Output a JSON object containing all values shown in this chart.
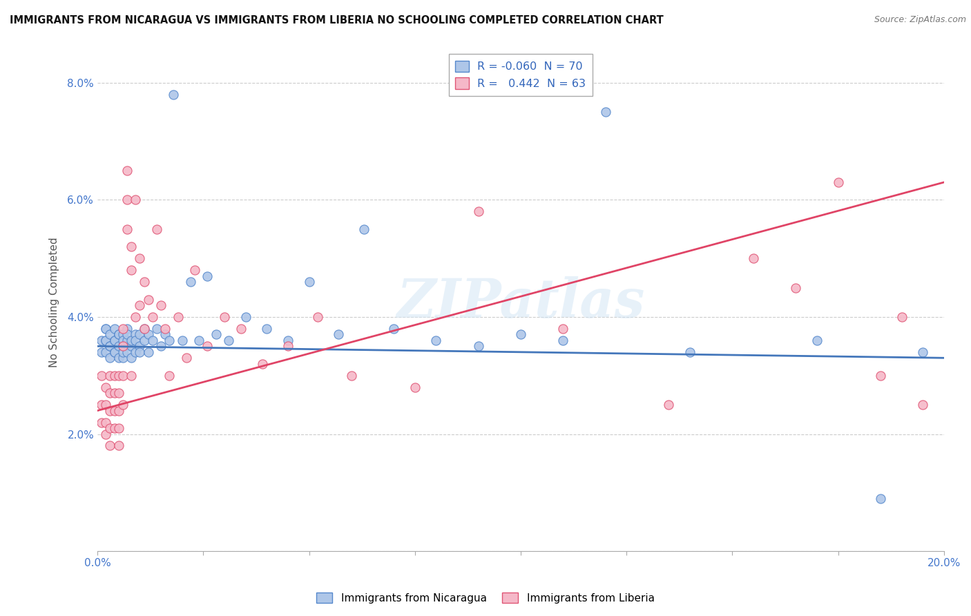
{
  "title": "IMMIGRANTS FROM NICARAGUA VS IMMIGRANTS FROM LIBERIA NO SCHOOLING COMPLETED CORRELATION CHART",
  "source": "Source: ZipAtlas.com",
  "ylabel": "No Schooling Completed",
  "xlim": [
    0.0,
    0.2
  ],
  "ylim": [
    0.0,
    0.085
  ],
  "xtick_pos": [
    0.0,
    0.025,
    0.05,
    0.075,
    0.1,
    0.125,
    0.15,
    0.175,
    0.2
  ],
  "xtick_labels": [
    "0.0%",
    "",
    "",
    "",
    "",
    "",
    "",
    "",
    "20.0%"
  ],
  "ytick_pos": [
    0.0,
    0.02,
    0.04,
    0.06,
    0.08
  ],
  "ytick_labels": [
    "",
    "2.0%",
    "4.0%",
    "6.0%",
    "8.0%"
  ],
  "legend_r_nicaragua": "-0.060",
  "legend_n_nicaragua": "70",
  "legend_r_liberia": "0.442",
  "legend_n_liberia": "63",
  "nicaragua_face_color": "#aec6e8",
  "liberia_face_color": "#f5b8c8",
  "nicaragua_edge_color": "#5588cc",
  "liberia_edge_color": "#e05575",
  "nicaragua_line_color": "#4477bb",
  "liberia_line_color": "#e04466",
  "watermark": "ZIPatlas",
  "background_color": "#ffffff",
  "nicaragua_x": [
    0.001,
    0.001,
    0.002,
    0.002,
    0.002,
    0.002,
    0.002,
    0.003,
    0.003,
    0.003,
    0.003,
    0.004,
    0.004,
    0.004,
    0.004,
    0.004,
    0.005,
    0.005,
    0.005,
    0.005,
    0.006,
    0.006,
    0.006,
    0.006,
    0.006,
    0.007,
    0.007,
    0.007,
    0.007,
    0.008,
    0.008,
    0.008,
    0.009,
    0.009,
    0.009,
    0.01,
    0.01,
    0.01,
    0.011,
    0.011,
    0.012,
    0.012,
    0.013,
    0.014,
    0.015,
    0.016,
    0.017,
    0.018,
    0.02,
    0.022,
    0.024,
    0.026,
    0.028,
    0.031,
    0.035,
    0.04,
    0.045,
    0.05,
    0.057,
    0.063,
    0.07,
    0.08,
    0.09,
    0.1,
    0.11,
    0.12,
    0.14,
    0.17,
    0.185,
    0.195
  ],
  "nicaragua_y": [
    0.036,
    0.034,
    0.038,
    0.036,
    0.034,
    0.038,
    0.036,
    0.035,
    0.037,
    0.033,
    0.035,
    0.036,
    0.034,
    0.038,
    0.036,
    0.034,
    0.037,
    0.035,
    0.033,
    0.037,
    0.035,
    0.037,
    0.033,
    0.036,
    0.034,
    0.036,
    0.038,
    0.034,
    0.037,
    0.035,
    0.033,
    0.036,
    0.037,
    0.034,
    0.036,
    0.035,
    0.037,
    0.034,
    0.036,
    0.038,
    0.034,
    0.037,
    0.036,
    0.038,
    0.035,
    0.037,
    0.036,
    0.078,
    0.036,
    0.046,
    0.036,
    0.047,
    0.037,
    0.036,
    0.04,
    0.038,
    0.036,
    0.046,
    0.037,
    0.055,
    0.038,
    0.036,
    0.035,
    0.037,
    0.036,
    0.075,
    0.034,
    0.036,
    0.009,
    0.034
  ],
  "liberia_x": [
    0.001,
    0.001,
    0.001,
    0.002,
    0.002,
    0.002,
    0.002,
    0.003,
    0.003,
    0.003,
    0.003,
    0.003,
    0.004,
    0.004,
    0.004,
    0.004,
    0.005,
    0.005,
    0.005,
    0.005,
    0.005,
    0.006,
    0.006,
    0.006,
    0.006,
    0.007,
    0.007,
    0.007,
    0.008,
    0.008,
    0.008,
    0.009,
    0.009,
    0.01,
    0.01,
    0.011,
    0.011,
    0.012,
    0.013,
    0.014,
    0.015,
    0.016,
    0.017,
    0.019,
    0.021,
    0.023,
    0.026,
    0.03,
    0.034,
    0.039,
    0.045,
    0.052,
    0.06,
    0.075,
    0.09,
    0.11,
    0.135,
    0.155,
    0.165,
    0.175,
    0.185,
    0.19,
    0.195
  ],
  "liberia_y": [
    0.03,
    0.025,
    0.022,
    0.028,
    0.025,
    0.022,
    0.02,
    0.03,
    0.027,
    0.024,
    0.021,
    0.018,
    0.03,
    0.027,
    0.024,
    0.021,
    0.03,
    0.027,
    0.024,
    0.021,
    0.018,
    0.038,
    0.035,
    0.03,
    0.025,
    0.065,
    0.06,
    0.055,
    0.052,
    0.048,
    0.03,
    0.06,
    0.04,
    0.05,
    0.042,
    0.046,
    0.038,
    0.043,
    0.04,
    0.055,
    0.042,
    0.038,
    0.03,
    0.04,
    0.033,
    0.048,
    0.035,
    0.04,
    0.038,
    0.032,
    0.035,
    0.04,
    0.03,
    0.028,
    0.058,
    0.038,
    0.025,
    0.05,
    0.045,
    0.063,
    0.03,
    0.04,
    0.025
  ]
}
